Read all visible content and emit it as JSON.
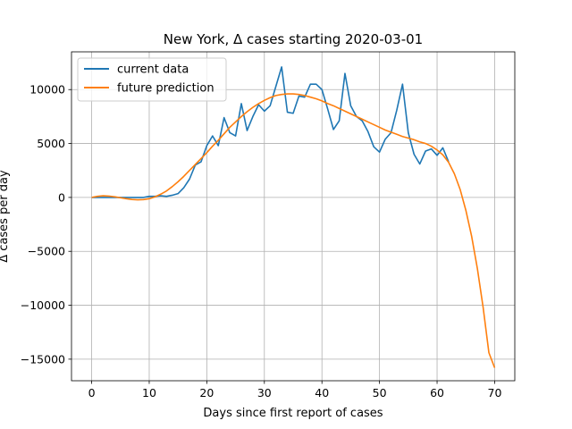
{
  "chart_data": {
    "type": "line",
    "title": "New York, Δ cases starting 2020-03-01",
    "xlabel": "Days since first report of cases",
    "ylabel": "Δ cases per day",
    "xlim": [
      -3.5,
      73.5
    ],
    "ylim": [
      -17000,
      13500
    ],
    "xticks": [
      0,
      10,
      20,
      30,
      40,
      50,
      60,
      70
    ],
    "xtick_labels": [
      "0",
      "10",
      "20",
      "30",
      "40",
      "50",
      "60",
      "70"
    ],
    "yticks": [
      -15000,
      -10000,
      -5000,
      0,
      5000,
      10000
    ],
    "ytick_labels": [
      "−15000",
      "−10000",
      "−5000",
      "0",
      "5000",
      "10000"
    ],
    "grid": true,
    "legend_position": "top-left",
    "series": [
      {
        "name": "current data",
        "color": "#1f77b4",
        "x": [
          0,
          1,
          2,
          3,
          4,
          5,
          6,
          7,
          8,
          9,
          10,
          11,
          12,
          13,
          14,
          15,
          16,
          17,
          18,
          19,
          20,
          21,
          22,
          23,
          24,
          25,
          26,
          27,
          28,
          29,
          30,
          31,
          32,
          33,
          34,
          35,
          36,
          37,
          38,
          39,
          40,
          41,
          42,
          43,
          44,
          45,
          46,
          47,
          48,
          49,
          50,
          51,
          52,
          53,
          54,
          55,
          56,
          57,
          58,
          59,
          60,
          61,
          62
        ],
        "y": [
          0,
          0,
          0,
          0,
          0,
          0,
          0,
          0,
          0,
          0,
          100,
          100,
          150,
          100,
          200,
          350,
          900,
          1700,
          3000,
          3300,
          4800,
          5700,
          4800,
          7400,
          6000,
          5700,
          8700,
          6200,
          7500,
          8600,
          8000,
          8500,
          10300,
          12100,
          7900,
          7800,
          9400,
          9300,
          10500,
          10500,
          10000,
          8200,
          6300,
          7100,
          11500,
          8500,
          7500,
          7100,
          6100,
          4700,
          4200,
          5400,
          6000,
          8100,
          10500,
          6000,
          4000,
          3100,
          4300,
          4500,
          3900,
          4600,
          3300
        ]
      },
      {
        "name": "future prediction",
        "color": "#ff7f0e",
        "x": [
          0,
          1,
          2,
          3,
          4,
          5,
          6,
          7,
          8,
          9,
          10,
          11,
          12,
          13,
          14,
          15,
          16,
          17,
          18,
          19,
          20,
          21,
          22,
          23,
          24,
          25,
          26,
          27,
          28,
          29,
          30,
          31,
          32,
          33,
          34,
          35,
          36,
          37,
          38,
          39,
          40,
          41,
          42,
          43,
          44,
          45,
          46,
          47,
          48,
          49,
          50,
          51,
          52,
          53,
          54,
          55,
          56,
          57,
          58,
          59,
          60,
          61,
          62,
          63,
          64,
          65,
          66,
          67,
          68,
          69,
          70
        ],
        "y": [
          0,
          100,
          150,
          120,
          60,
          -30,
          -120,
          -190,
          -220,
          -200,
          -120,
          50,
          300,
          600,
          1000,
          1450,
          1950,
          2500,
          3050,
          3600,
          4150,
          4750,
          5300,
          5900,
          6500,
          7000,
          7500,
          7950,
          8350,
          8700,
          9000,
          9250,
          9450,
          9550,
          9600,
          9600,
          9550,
          9450,
          9300,
          9150,
          8950,
          8700,
          8500,
          8250,
          8000,
          7750,
          7500,
          7250,
          7000,
          6750,
          6500,
          6250,
          6050,
          5850,
          5650,
          5500,
          5350,
          5150,
          5000,
          4750,
          4400,
          3950,
          3250,
          2200,
          750,
          -1200,
          -3600,
          -6600,
          -10200,
          -14400,
          -15800
        ]
      }
    ]
  }
}
